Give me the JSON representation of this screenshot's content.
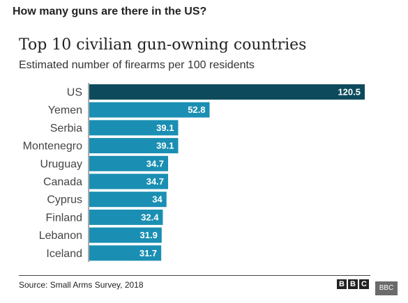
{
  "page": {
    "heading": "How many guns are there in the US?"
  },
  "chart_data": {
    "type": "bar",
    "orientation": "horizontal",
    "title": "Top 10 civilian gun-owning countries",
    "subtitle": "Estimated number of firearms per 100 residents",
    "categories": [
      "US",
      "Yemen",
      "Serbia",
      "Montenegro",
      "Uruguay",
      "Canada",
      "Cyprus",
      "Finland",
      "Lebanon",
      "Iceland"
    ],
    "values": [
      120.5,
      52.8,
      39.1,
      39.1,
      34.7,
      34.7,
      34,
      32.4,
      31.9,
      31.7
    ],
    "value_labels": [
      "120.5",
      "52.8",
      "39.1",
      "39.1",
      "34.7",
      "34.7",
      "34",
      "32.4",
      "31.9",
      "31.7"
    ],
    "xlim": [
      0,
      120.5
    ],
    "grid": false,
    "colors": {
      "highlight": "#0d4b5c",
      "default": "#1a8fb3"
    },
    "highlight_index": 0
  },
  "footer": {
    "source": "Source: Small Arms Survey, 2018",
    "logo_letters": [
      "B",
      "B",
      "C"
    ],
    "watermark": "BBC"
  }
}
